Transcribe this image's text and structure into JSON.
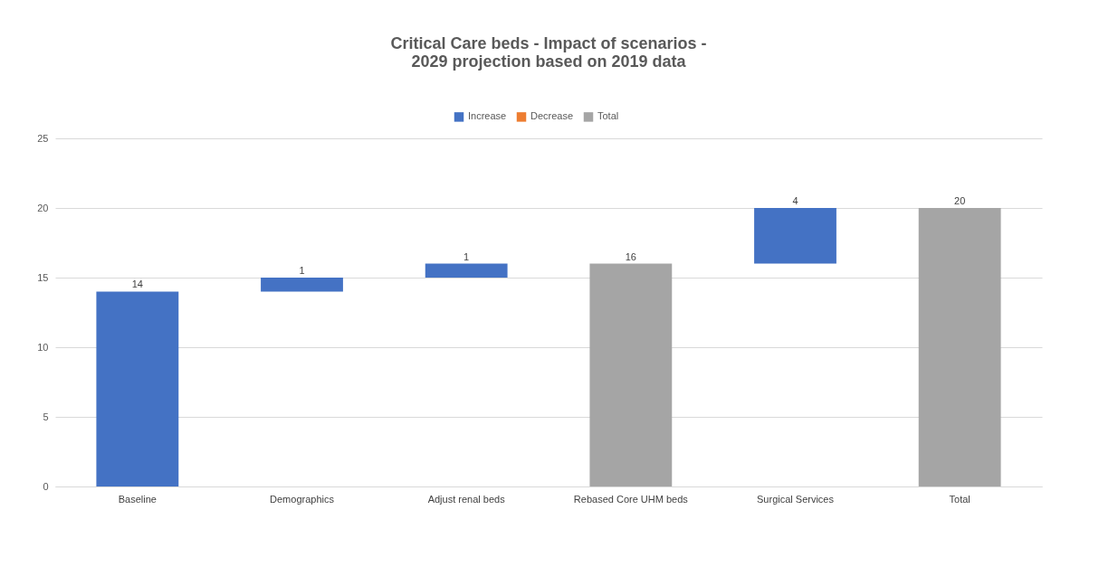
{
  "chart_data": {
    "type": "bar",
    "title": "Critical Care beds - Impact of scenarios - 2029 projection based on 2019 data",
    "categories": [
      "Baseline",
      "Demographics",
      "Adjust renal beds",
      "Rebased Core UHM beds",
      "Surgical Services",
      "Total"
    ],
    "series": [
      {
        "name": "Increase",
        "color": "#4472c4",
        "values": [
          14,
          1,
          1,
          null,
          4,
          null
        ],
        "base": [
          0,
          14,
          15,
          null,
          16,
          null
        ]
      },
      {
        "name": "Decrease",
        "color": "#ed7d31",
        "values": [
          null,
          null,
          null,
          null,
          null,
          null
        ]
      },
      {
        "name": "Total",
        "color": "#a5a5a5",
        "values": [
          null,
          null,
          null,
          16,
          null,
          20
        ],
        "base": [
          null,
          null,
          null,
          0,
          null,
          0
        ]
      }
    ],
    "ylim": [
      0,
      25
    ],
    "yticks": [
      0,
      5,
      10,
      15,
      20,
      25
    ],
    "grid": "y",
    "legend": "top",
    "data_labels": true
  }
}
